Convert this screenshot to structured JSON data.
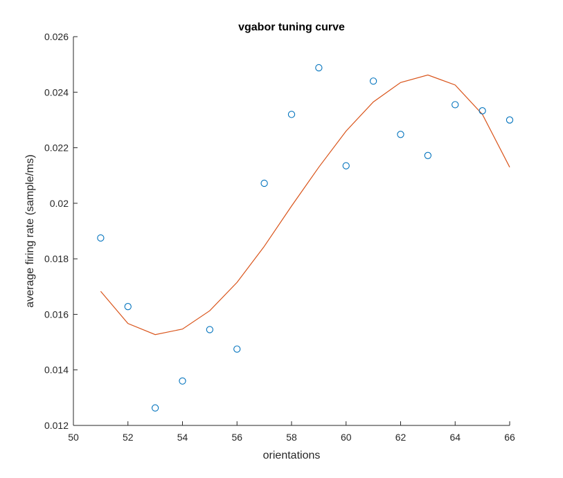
{
  "chart_data": {
    "type": "scatter",
    "title": "vgabor tuning curve",
    "xlabel": "orientations",
    "ylabel": "average firing rate (sample/ms)",
    "xlim": [
      50,
      66
    ],
    "ylim": [
      0.012,
      0.026
    ],
    "xticks": [
      50,
      52,
      54,
      56,
      58,
      60,
      62,
      64,
      66
    ],
    "xtick_labels": [
      "50",
      "52",
      "54",
      "56",
      "58",
      "60",
      "62",
      "64",
      "66"
    ],
    "yticks": [
      0.012,
      0.014,
      0.016,
      0.018,
      0.02,
      0.022,
      0.024,
      0.026
    ],
    "ytick_labels": [
      "0.012",
      "0.014",
      "0.016",
      "0.018",
      "0.02",
      "0.022",
      "0.024",
      "0.026"
    ],
    "grid": false,
    "series": [
      {
        "type": "scatter",
        "marker": "circle-open",
        "color": "#0072BD",
        "x": [
          51,
          52,
          53,
          54,
          55,
          56,
          57,
          58,
          59,
          60,
          61,
          62,
          63,
          64,
          65,
          66
        ],
        "y": [
          0.01875,
          0.01628,
          0.01263,
          0.0136,
          0.01545,
          0.01475,
          0.02072,
          0.0232,
          0.02488,
          0.02135,
          0.0244,
          0.02248,
          0.02172,
          0.02355,
          0.02333,
          0.023
        ]
      },
      {
        "type": "line",
        "color": "#D95319",
        "x": [
          51,
          52,
          53,
          54,
          55,
          56,
          57,
          58,
          59,
          60,
          61,
          62,
          63,
          64,
          65,
          66
        ],
        "y": [
          0.01683,
          0.01567,
          0.01527,
          0.01547,
          0.01613,
          0.01715,
          0.01845,
          0.0199,
          0.0213,
          0.0226,
          0.02365,
          0.02435,
          0.02462,
          0.02426,
          0.0232,
          0.0213
        ]
      }
    ]
  }
}
